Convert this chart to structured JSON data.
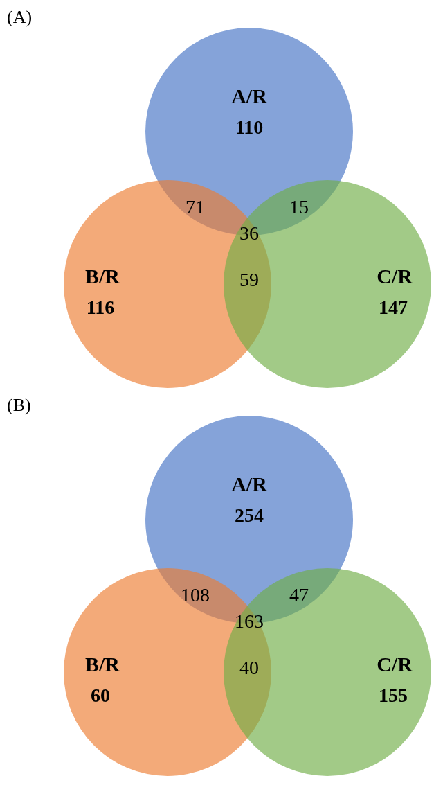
{
  "chart_data": [
    {
      "type": "other",
      "title": "(A)",
      "categories": [
        "A/R",
        "B/R",
        "C/R"
      ],
      "values": [
        110,
        116,
        147
      ],
      "colors": [
        "#4472c4",
        "#ed7d31",
        "#70ad47"
      ],
      "data_labels": true,
      "annotations": [
        "71",
        "15",
        "59",
        "36"
      ]
    },
    {
      "type": "other",
      "title": "(B)",
      "categories": [
        "A/R",
        "B/R",
        "C/R"
      ],
      "values": [
        254,
        60,
        155
      ],
      "colors": [
        "#4472c4",
        "#ed7d31",
        "#70ad47"
      ],
      "data_labels": true,
      "annotations": [
        "108",
        "47",
        "40",
        "163"
      ]
    }
  ]
}
